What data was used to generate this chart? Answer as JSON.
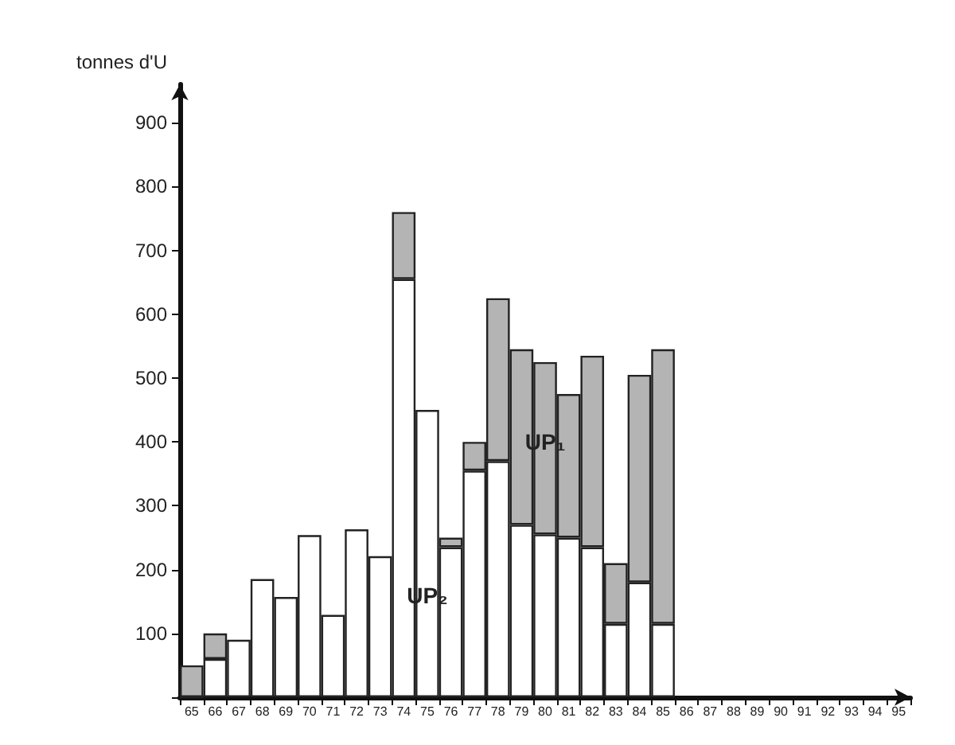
{
  "chart_data": {
    "type": "bar",
    "stacked": true,
    "ylabel": "tonnes d'U",
    "categories": [
      "65",
      "66",
      "67",
      "68",
      "69",
      "70",
      "71",
      "72",
      "73",
      "74",
      "75",
      "76",
      "77",
      "78",
      "79",
      "80",
      "81",
      "82",
      "83",
      "84",
      "85",
      "86",
      "87",
      "88",
      "89",
      "90",
      "91",
      "92",
      "93",
      "94",
      "95"
    ],
    "series": [
      {
        "name": "UP₂",
        "color": "#ffffff",
        "values": [
          0,
          60,
          90,
          185,
          157,
          254,
          129,
          263,
          221,
          655,
          450,
          235,
          355,
          370,
          270,
          255,
          250,
          235,
          115,
          180,
          115,
          null,
          null,
          null,
          null,
          null,
          null,
          null,
          null,
          null,
          null
        ]
      },
      {
        "name": "UP₁",
        "color": "#b4b4b4",
        "values": [
          50,
          40,
          null,
          null,
          null,
          null,
          null,
          null,
          null,
          105,
          null,
          15,
          45,
          255,
          275,
          270,
          225,
          300,
          95,
          325,
          430,
          null,
          null,
          null,
          null,
          null,
          null,
          null,
          null,
          null,
          null
        ]
      }
    ],
    "ylim": [
      0,
      960
    ],
    "yticks": [
      {
        "value": 0,
        "label": null
      },
      100,
      200,
      300,
      400,
      500,
      600,
      700,
      800,
      900
    ],
    "grid": false,
    "legend": false
  }
}
